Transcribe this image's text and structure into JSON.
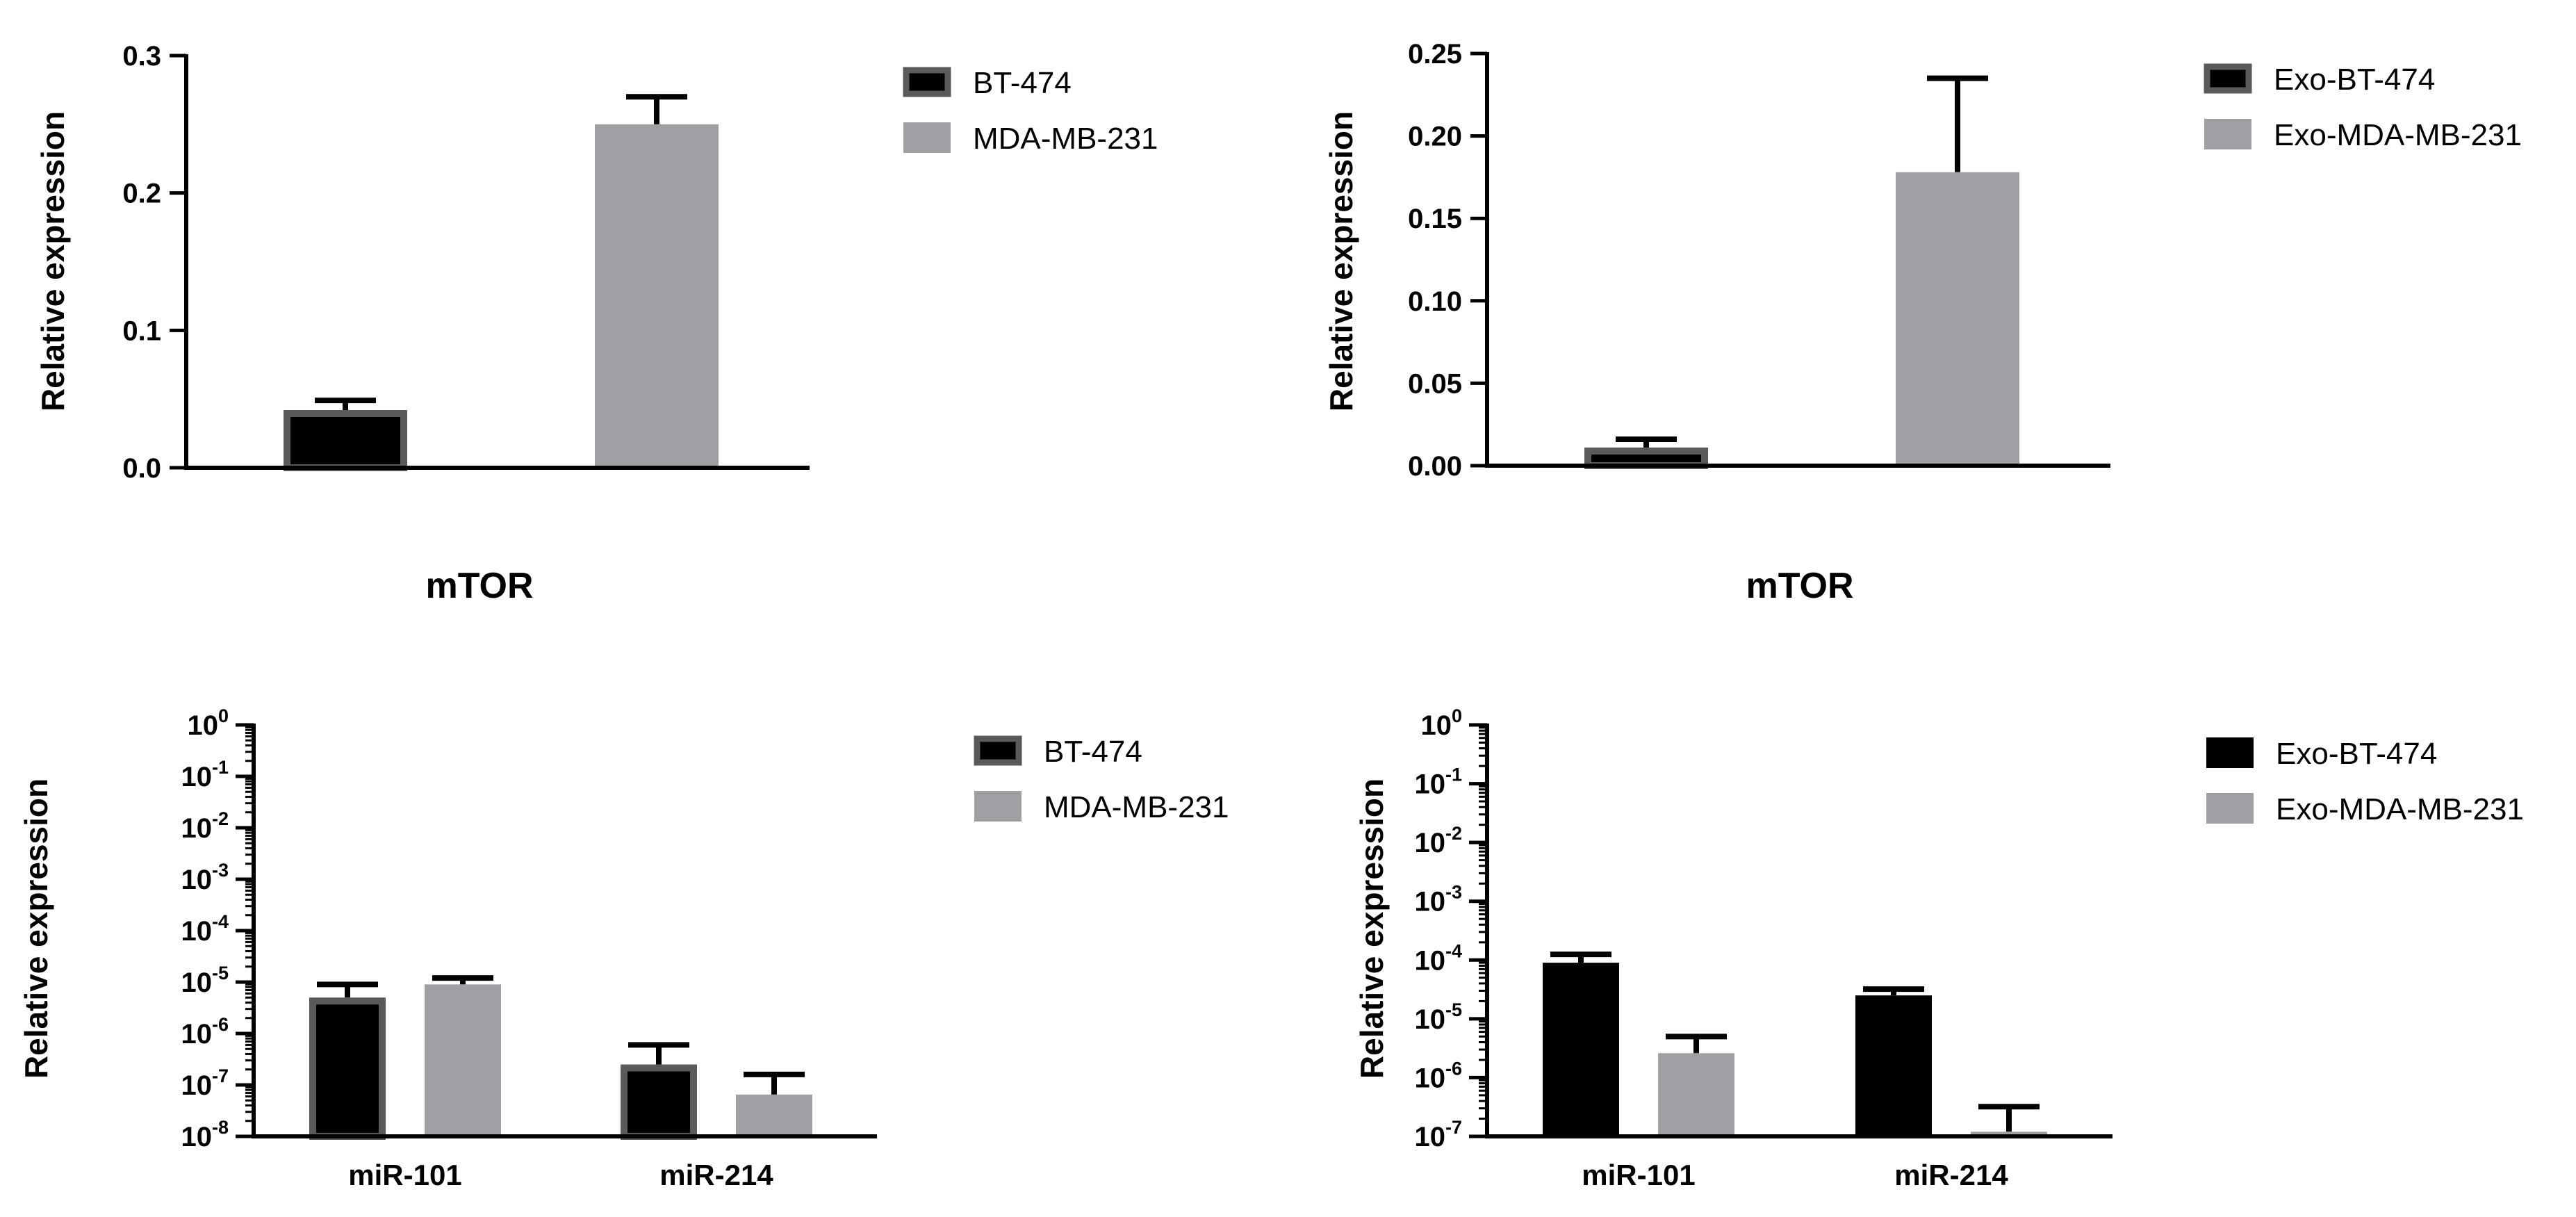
{
  "colors": {
    "dark": "#000000",
    "dark_border": "#5a5a5a",
    "light": "#a0a0a4"
  },
  "chart_data": [
    {
      "type": "bar",
      "title": "",
      "xlabel": "mTOR",
      "ylabel": "Relative expression",
      "categories": [
        ""
      ],
      "ylim": [
        0,
        0.3
      ],
      "yticks": [
        0,
        0.1,
        0.2,
        0.3
      ],
      "ytick_labels": [
        "0.0",
        "0.1",
        "0.2",
        "0.3"
      ],
      "log_scale": false,
      "legend": "top-right",
      "series": [
        {
          "name": "BT-474",
          "values": [
            0.042
          ],
          "errors": [
            0.007
          ],
          "color": "#000000",
          "border": "#5a5a5a"
        },
        {
          "name": "MDA-MB-231",
          "values": [
            0.25
          ],
          "errors": [
            0.02
          ],
          "color": "#a0a0a4",
          "border": "#a0a0a4"
        }
      ]
    },
    {
      "type": "bar",
      "title": "",
      "xlabel": "mTOR",
      "ylabel": "Relative expression",
      "categories": [
        ""
      ],
      "ylim": [
        0,
        0.25
      ],
      "yticks": [
        0,
        0.05,
        0.1,
        0.15,
        0.2,
        0.25
      ],
      "ytick_labels": [
        "0.00",
        "0.05",
        "0.10",
        "0.15",
        "0.20",
        "0.25"
      ],
      "log_scale": false,
      "legend": "top-right",
      "series": [
        {
          "name": "Exo-BT-474",
          "values": [
            0.011
          ],
          "errors": [
            0.005
          ],
          "color": "#000000",
          "border": "#5a5a5a"
        },
        {
          "name": "Exo-MDA-MB-231",
          "values": [
            0.178
          ],
          "errors": [
            0.057
          ],
          "color": "#a0a0a4",
          "border": "#a0a0a4"
        }
      ]
    },
    {
      "type": "bar",
      "title": "",
      "xlabel": "",
      "ylabel": "Relative expression",
      "categories": [
        "miR-101",
        "miR-214"
      ],
      "ylim": [
        1e-08,
        1
      ],
      "log_scale": true,
      "ytick_base": "10",
      "ytick_exponents": [
        "0",
        "-1",
        "-2",
        "-3",
        "-4",
        "-5",
        "-6",
        "-7",
        "-8"
      ],
      "legend": "top-right",
      "series": [
        {
          "name": "BT-474",
          "values": [
            5e-06,
            2.5e-07
          ],
          "error_tops": [
            9e-06,
            6e-07
          ],
          "color": "#000000",
          "border": "#5a5a5a"
        },
        {
          "name": "MDA-MB-231",
          "values": [
            9e-06,
            6.5e-08
          ],
          "error_tops": [
            1.2e-05,
            1.6e-07
          ],
          "color": "#a0a0a4",
          "border": "#a0a0a4"
        }
      ]
    },
    {
      "type": "bar",
      "title": "",
      "xlabel": "",
      "ylabel": "Relative expression",
      "categories": [
        "miR-101",
        "miR-214"
      ],
      "ylim": [
        1e-07,
        1
      ],
      "log_scale": true,
      "ytick_base": "10",
      "ytick_exponents": [
        "0",
        "-1",
        "-2",
        "-3",
        "-4",
        "-5",
        "-6",
        "-7"
      ],
      "legend": "top-right",
      "series": [
        {
          "name": "Exo-BT-474",
          "values": [
            9e-05,
            2.5e-05
          ],
          "error_tops": [
            0.000125,
            3.2e-05
          ],
          "color": "#000000",
          "border": "#000000"
        },
        {
          "name": "Exo-MDA-MB-231",
          "values": [
            2.6e-06,
            1.2e-07
          ],
          "error_tops": [
            5e-06,
            3.2e-07
          ],
          "color": "#a0a0a4",
          "border": "#a0a0a4"
        }
      ]
    }
  ]
}
